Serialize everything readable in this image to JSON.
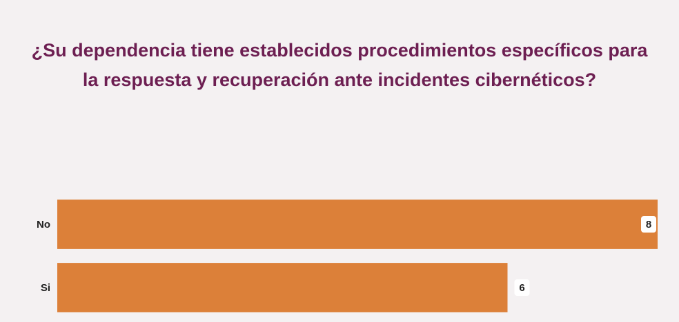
{
  "chart_data": {
    "type": "bar",
    "orientation": "horizontal",
    "title": "¿Su dependencia tiene establecidos procedimientos específicos para la respuesta y recuperación ante incidentes cibernéticos?",
    "categories": [
      "No",
      "Si"
    ],
    "values": [
      8,
      6
    ],
    "color": "#dc8039",
    "xlim": [
      0,
      8
    ]
  }
}
